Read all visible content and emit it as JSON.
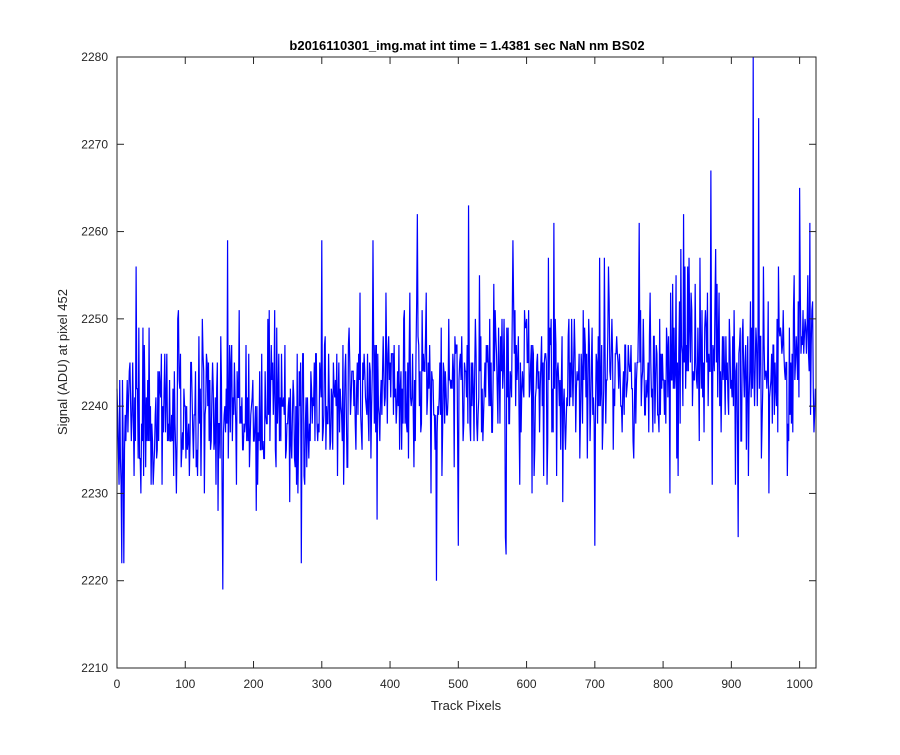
{
  "chart_data": {
    "type": "line",
    "title": "b2016110301_img.mat int time = 1.4381 sec  NaN nm BS02",
    "xlabel": "Track Pixels",
    "ylabel": "Signal (ADU) at pixel 452",
    "xlim": [
      0,
      1024
    ],
    "ylim": [
      2210,
      2280
    ],
    "xticks": [
      0,
      100,
      200,
      300,
      400,
      500,
      600,
      700,
      800,
      900,
      1000
    ],
    "yticks": [
      2210,
      2220,
      2230,
      2240,
      2250,
      2260,
      2270,
      2280
    ],
    "grid": false,
    "legend": "none",
    "series": [
      {
        "color": "#0000ff",
        "noise_summary": {
          "n_points": 1024,
          "mean_start": 2238,
          "mean_end": 2246,
          "amplitude": 7,
          "min": 2219,
          "max": 2280
        },
        "x": [
          0,
          7,
          10,
          28,
          125,
          155,
          162,
          270,
          300,
          375,
          440,
          468,
          500,
          515,
          570,
          580,
          640,
          700,
          720,
          765,
          830,
          870,
          910,
          932,
          940,
          955,
          1000,
          1015,
          1022
        ],
        "y": [
          2242,
          2222,
          2222,
          2256,
          2250,
          2219,
          2259,
          2222,
          2259,
          2259,
          2262,
          2220,
          2224,
          2263,
          2223,
          2259,
          2261,
          2224,
          2256,
          2261,
          2262,
          2267,
          2225,
          2280,
          2273,
          2230,
          2265,
          2261,
          2239
        ]
      }
    ]
  }
}
